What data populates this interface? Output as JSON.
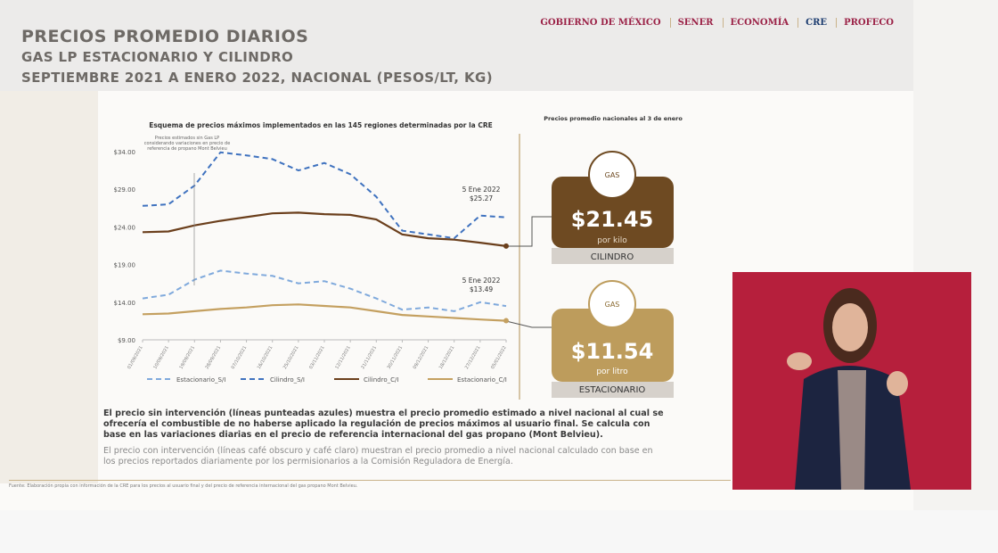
{
  "header": {
    "title": "PRECIOS PROMEDIO DIARIOS",
    "subtitle": "GAS LP ESTACIONARIO Y CILINDRO",
    "period": "SEPTIEMBRE 2021 A ENERO 2022, NACIONAL (PESOS/LT, KG)"
  },
  "logos": [
    "GOBIERNO DE MÉXICO",
    "SENER",
    "ECONOMÍA",
    "CRE",
    "PROFECO"
  ],
  "chart_data": {
    "type": "line",
    "title": "Esquema de precios máximos implementados en las 145 regiones determinadas por la CRE",
    "note": "Precios estimados sin Gas LP considerando variaciones en precio de referencia de propano Mont Belvieu",
    "categories": [
      "01/09/2021",
      "10/09/2021",
      "19/09/2021",
      "28/09/2021",
      "07/10/2021",
      "16/10/2021",
      "25/10/2021",
      "03/11/2021",
      "12/11/2021",
      "21/11/2021",
      "30/11/2021",
      "09/12/2021",
      "18/12/2021",
      "27/12/2021",
      "05/01/2022"
    ],
    "ylim": [
      9,
      34
    ],
    "yticks": [
      {
        "value": 9,
        "label": "$9.00"
      },
      {
        "value": 14,
        "label": "$14.00"
      },
      {
        "value": 19,
        "label": "$19.00"
      },
      {
        "value": 24,
        "label": "$24.00"
      },
      {
        "value": 29,
        "label": "$29.00"
      },
      {
        "value": 34,
        "label": "$34.00"
      }
    ],
    "series": [
      {
        "name": "Estacionario_S/I",
        "color": "#7fa9dc",
        "dashed": true,
        "values": [
          14.5,
          15,
          17,
          18.2,
          17.8,
          17.5,
          16.5,
          16.8,
          15.8,
          14.5,
          13,
          13.3,
          12.8,
          14,
          13.49
        ]
      },
      {
        "name": "Cilindro_S/I",
        "color": "#3f72bf",
        "dashed": true,
        "values": [
          26.8,
          27,
          29.5,
          33.9,
          33.5,
          33,
          31.5,
          32.5,
          31,
          28,
          23.5,
          23,
          22.5,
          25.5,
          25.27
        ]
      },
      {
        "name": "Cilindro_C/I",
        "color": "#6b3f1c",
        "dashed": false,
        "values": [
          23.3,
          23.4,
          24.2,
          24.8,
          25.3,
          25.8,
          25.9,
          25.7,
          25.6,
          25,
          23,
          22.5,
          22.3,
          21.9,
          21.45
        ]
      },
      {
        "name": "Estacionario_C/I",
        "color": "#c4a060",
        "dashed": false,
        "values": [
          12.4,
          12.5,
          12.8,
          13.1,
          13.3,
          13.6,
          13.7,
          13.5,
          13.3,
          12.8,
          12.3,
          12.1,
          11.9,
          11.7,
          11.54
        ]
      }
    ],
    "annotations": [
      {
        "date": "5 Ene 2022",
        "price": "$25.27"
      },
      {
        "date": "5 Ene 2022",
        "price": "$13.49"
      }
    ]
  },
  "summary_title": "Precios promedio nacionales al 3 de enero",
  "price_cards": [
    {
      "icon": "GAS",
      "price": "$21.45",
      "unit": "por kilo",
      "label": "CILINDRO"
    },
    {
      "icon": "GAS",
      "price": "$11.54",
      "unit": "por litro",
      "label": "ESTACIONARIO"
    }
  ],
  "notes": [
    "El precio sin intervención (líneas punteadas azules) muestra el precio promedio estimado a nivel nacional al cual se ofrecería el combustible de no haberse aplicado la regulación de precios máximos al usuario final. Se calcula con base en las variaciones diarias en el precio de referencia internacional del gas propano (Mont Belvieu).",
    "El precio con intervención (líneas café obscuro y café claro) muestran el precio promedio a nivel nacional calculado con base en los precios reportados diariamente por los permisionarios a la Comisión Reguladora de Energía."
  ],
  "source": "Fuente: Elaboración propia con información de la CRE para los precios al usuario final y del precio de referencia internacional del gas propano Mont Belvieu."
}
